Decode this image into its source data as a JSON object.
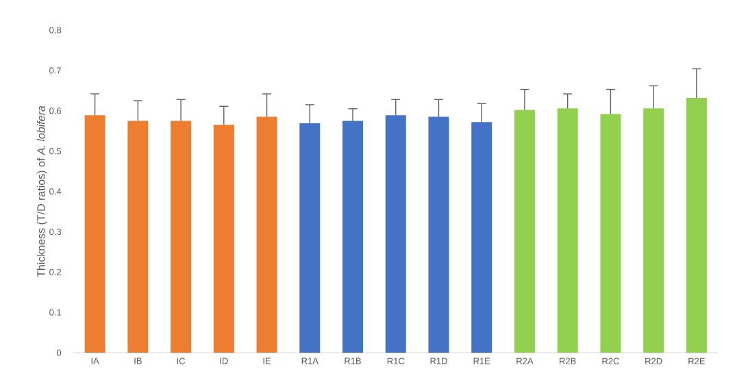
{
  "chart_data": {
    "type": "bar",
    "ylabel": "Thickness (T/D ratios) of *A. lobifera*",
    "categories": [
      "IA",
      "IB",
      "IC",
      "ID",
      "IE",
      "R1A",
      "R1B",
      "R1C",
      "R1D",
      "R1E",
      "R2A",
      "R2B",
      "R2C",
      "R2D",
      "R2E"
    ],
    "values": [
      0.589,
      0.575,
      0.575,
      0.565,
      0.585,
      0.569,
      0.575,
      0.589,
      0.585,
      0.572,
      0.602,
      0.606,
      0.592,
      0.606,
      0.632
    ],
    "errors": [
      [
        0.589,
        0.642
      ],
      [
        0.575,
        0.625
      ],
      [
        0.575,
        0.628
      ],
      [
        0.565,
        0.611
      ],
      [
        0.585,
        0.642
      ],
      [
        0.569,
        0.615
      ],
      [
        0.575,
        0.605
      ],
      [
        0.589,
        0.628
      ],
      [
        0.585,
        0.628
      ],
      [
        0.572,
        0.618
      ],
      [
        0.602,
        0.653
      ],
      [
        0.606,
        0.642
      ],
      [
        0.592,
        0.653
      ],
      [
        0.606,
        0.662
      ],
      [
        0.632,
        0.704
      ]
    ],
    "colors": [
      "#ed7d31",
      "#ed7d31",
      "#ed7d31",
      "#ed7d31",
      "#ed7d31",
      "#4472c4",
      "#4472c4",
      "#4472c4",
      "#4472c4",
      "#4472c4",
      "#92d050",
      "#92d050",
      "#92d050",
      "#92d050",
      "#92d050"
    ],
    "ylim": [
      0,
      0.8
    ],
    "yticks": [
      0,
      0.1,
      0.2,
      0.3,
      0.4,
      0.5,
      0.6,
      0.7,
      0.8
    ]
  }
}
